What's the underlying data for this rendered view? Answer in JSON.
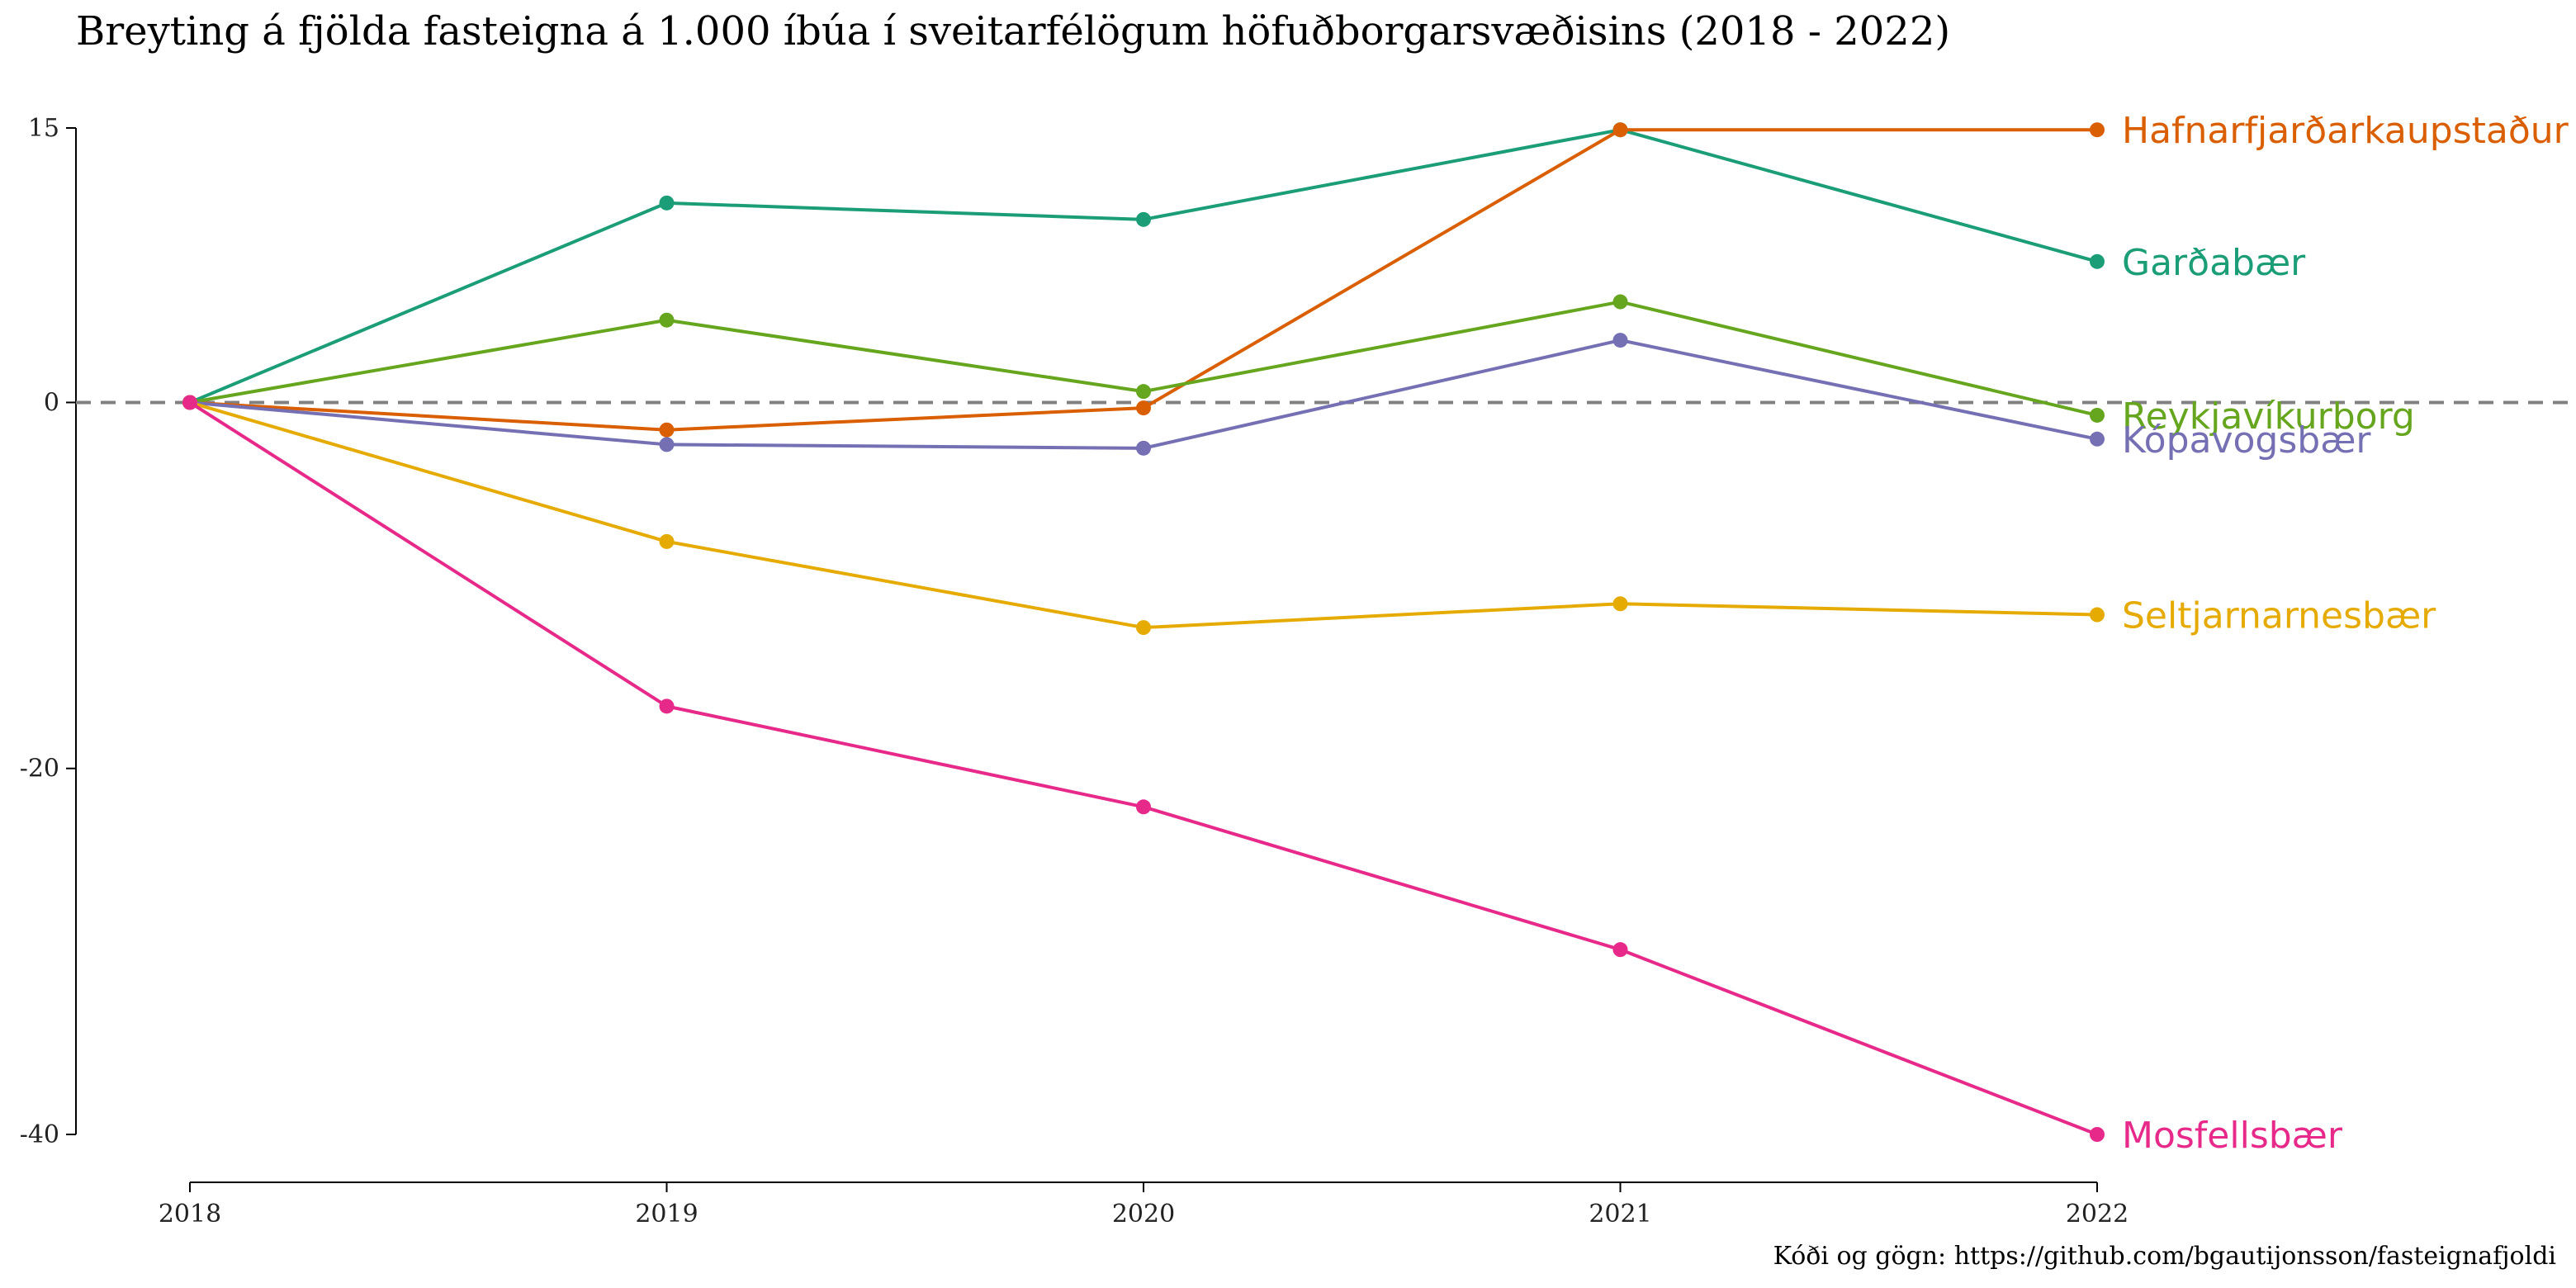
{
  "chart_data": {
    "type": "line",
    "title": "Breyting á fjölda fasteigna á 1.000 íbúa í sveitarfélögum höfuðborgarsvæðisins (2018 - 2022)",
    "caption": "Kóði og gögn: https://github.com/bgautijonsson/fasteignafjoldi",
    "xlabel": "",
    "ylabel": "",
    "x": [
      "2018",
      "2019",
      "2020",
      "2021",
      "2022"
    ],
    "xlim": [
      2018,
      2022
    ],
    "ylim": [
      -40,
      15
    ],
    "yticks": [
      15,
      0,
      -20,
      -40
    ],
    "y_tick_labels": [
      "15",
      "0",
      "-20",
      "-40"
    ],
    "reference_line": {
      "y": 0,
      "style": "dashed",
      "color": "#808080"
    },
    "grid": false,
    "legend": "direct-labels-right",
    "series": [
      {
        "name": "Garðabær",
        "color": "#1B9E77",
        "values": [
          0,
          10.9,
          10.0,
          14.9,
          7.7
        ]
      },
      {
        "name": "Hafnarfjarðarkaupstaður",
        "color": "#D95F02",
        "values": [
          0,
          -1.5,
          -0.3,
          14.9,
          14.9
        ]
      },
      {
        "name": "Reykjavíkurborg",
        "color": "#66A61E",
        "values": [
          0,
          4.5,
          0.6,
          5.5,
          -0.7
        ]
      },
      {
        "name": "Kópavogsbær",
        "color": "#7570B3",
        "values": [
          0,
          -2.3,
          -2.5,
          3.4,
          -2.0
        ]
      },
      {
        "name": "Seltjarnarnesbær",
        "color": "#E6AB02",
        "values": [
          0,
          -7.6,
          -12.3,
          -11.0,
          -11.6
        ]
      },
      {
        "name": "Mosfellsbær",
        "color": "#E7298A",
        "values": [
          0,
          -16.6,
          -22.1,
          -29.9,
          -40.0
        ]
      }
    ]
  }
}
